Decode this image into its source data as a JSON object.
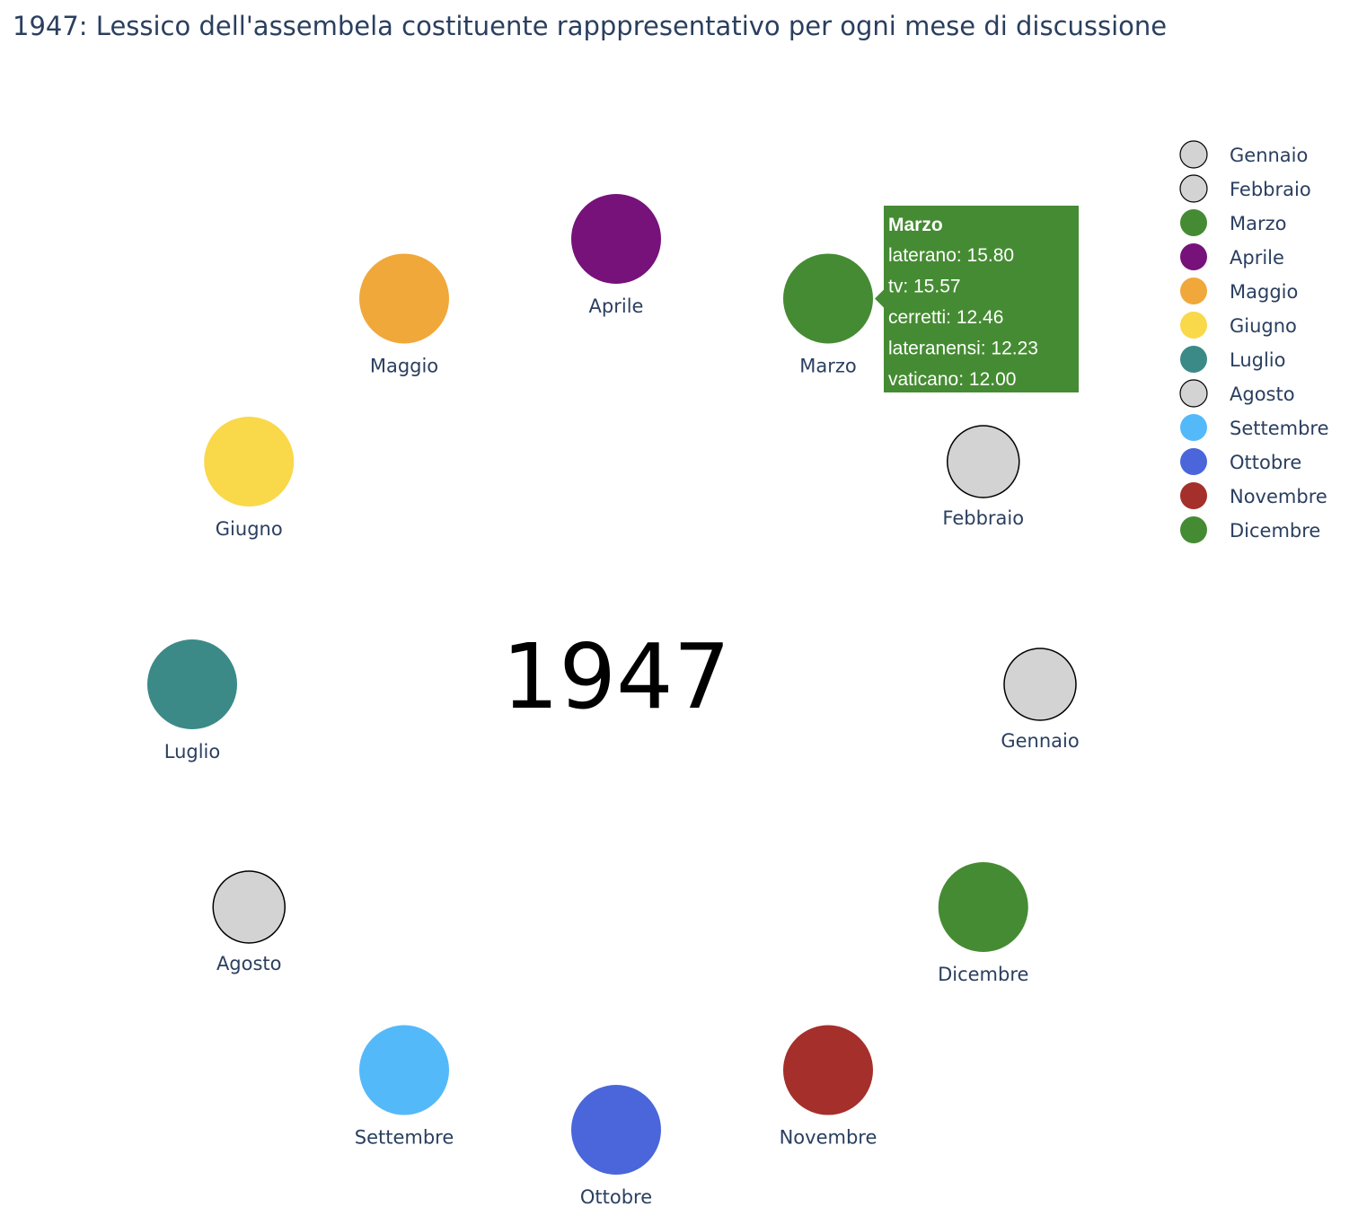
{
  "title": "1947: Lessico dell'assembela costituente rapppresentativo per ogni mese di discussione",
  "chart_data": {
    "type": "scatter",
    "center_label": "1947",
    "layout": "months arranged on a circle; grey bordered marker = no data",
    "months": [
      {
        "name": "Gennaio",
        "color": "#d3d3d3",
        "empty": true
      },
      {
        "name": "Febbraio",
        "color": "#d3d3d3",
        "empty": true
      },
      {
        "name": "Marzo",
        "color": "#458b33",
        "empty": false
      },
      {
        "name": "Aprile",
        "color": "#76127a",
        "empty": false
      },
      {
        "name": "Maggio",
        "color": "#f0a83a",
        "empty": false
      },
      {
        "name": "Giugno",
        "color": "#f9d84a",
        "empty": false
      },
      {
        "name": "Luglio",
        "color": "#3b8a88",
        "empty": false
      },
      {
        "name": "Agosto",
        "color": "#d3d3d3",
        "empty": true
      },
      {
        "name": "Settembre",
        "color": "#54b9f9",
        "empty": false
      },
      {
        "name": "Ottobre",
        "color": "#4a66da",
        "empty": false
      },
      {
        "name": "Novembre",
        "color": "#a52f2b",
        "empty": false
      },
      {
        "name": "Dicembre",
        "color": "#458b33",
        "empty": false
      }
    ],
    "legend_position": "top-right",
    "hover": {
      "month": "Marzo",
      "color": "#458b33",
      "title": "Marzo",
      "lines": [
        "laterano: 15.80",
        "tv: 15.57",
        "cerretti: 12.46",
        "lateranensi: 12.23",
        "vaticano: 12.00"
      ]
    }
  }
}
